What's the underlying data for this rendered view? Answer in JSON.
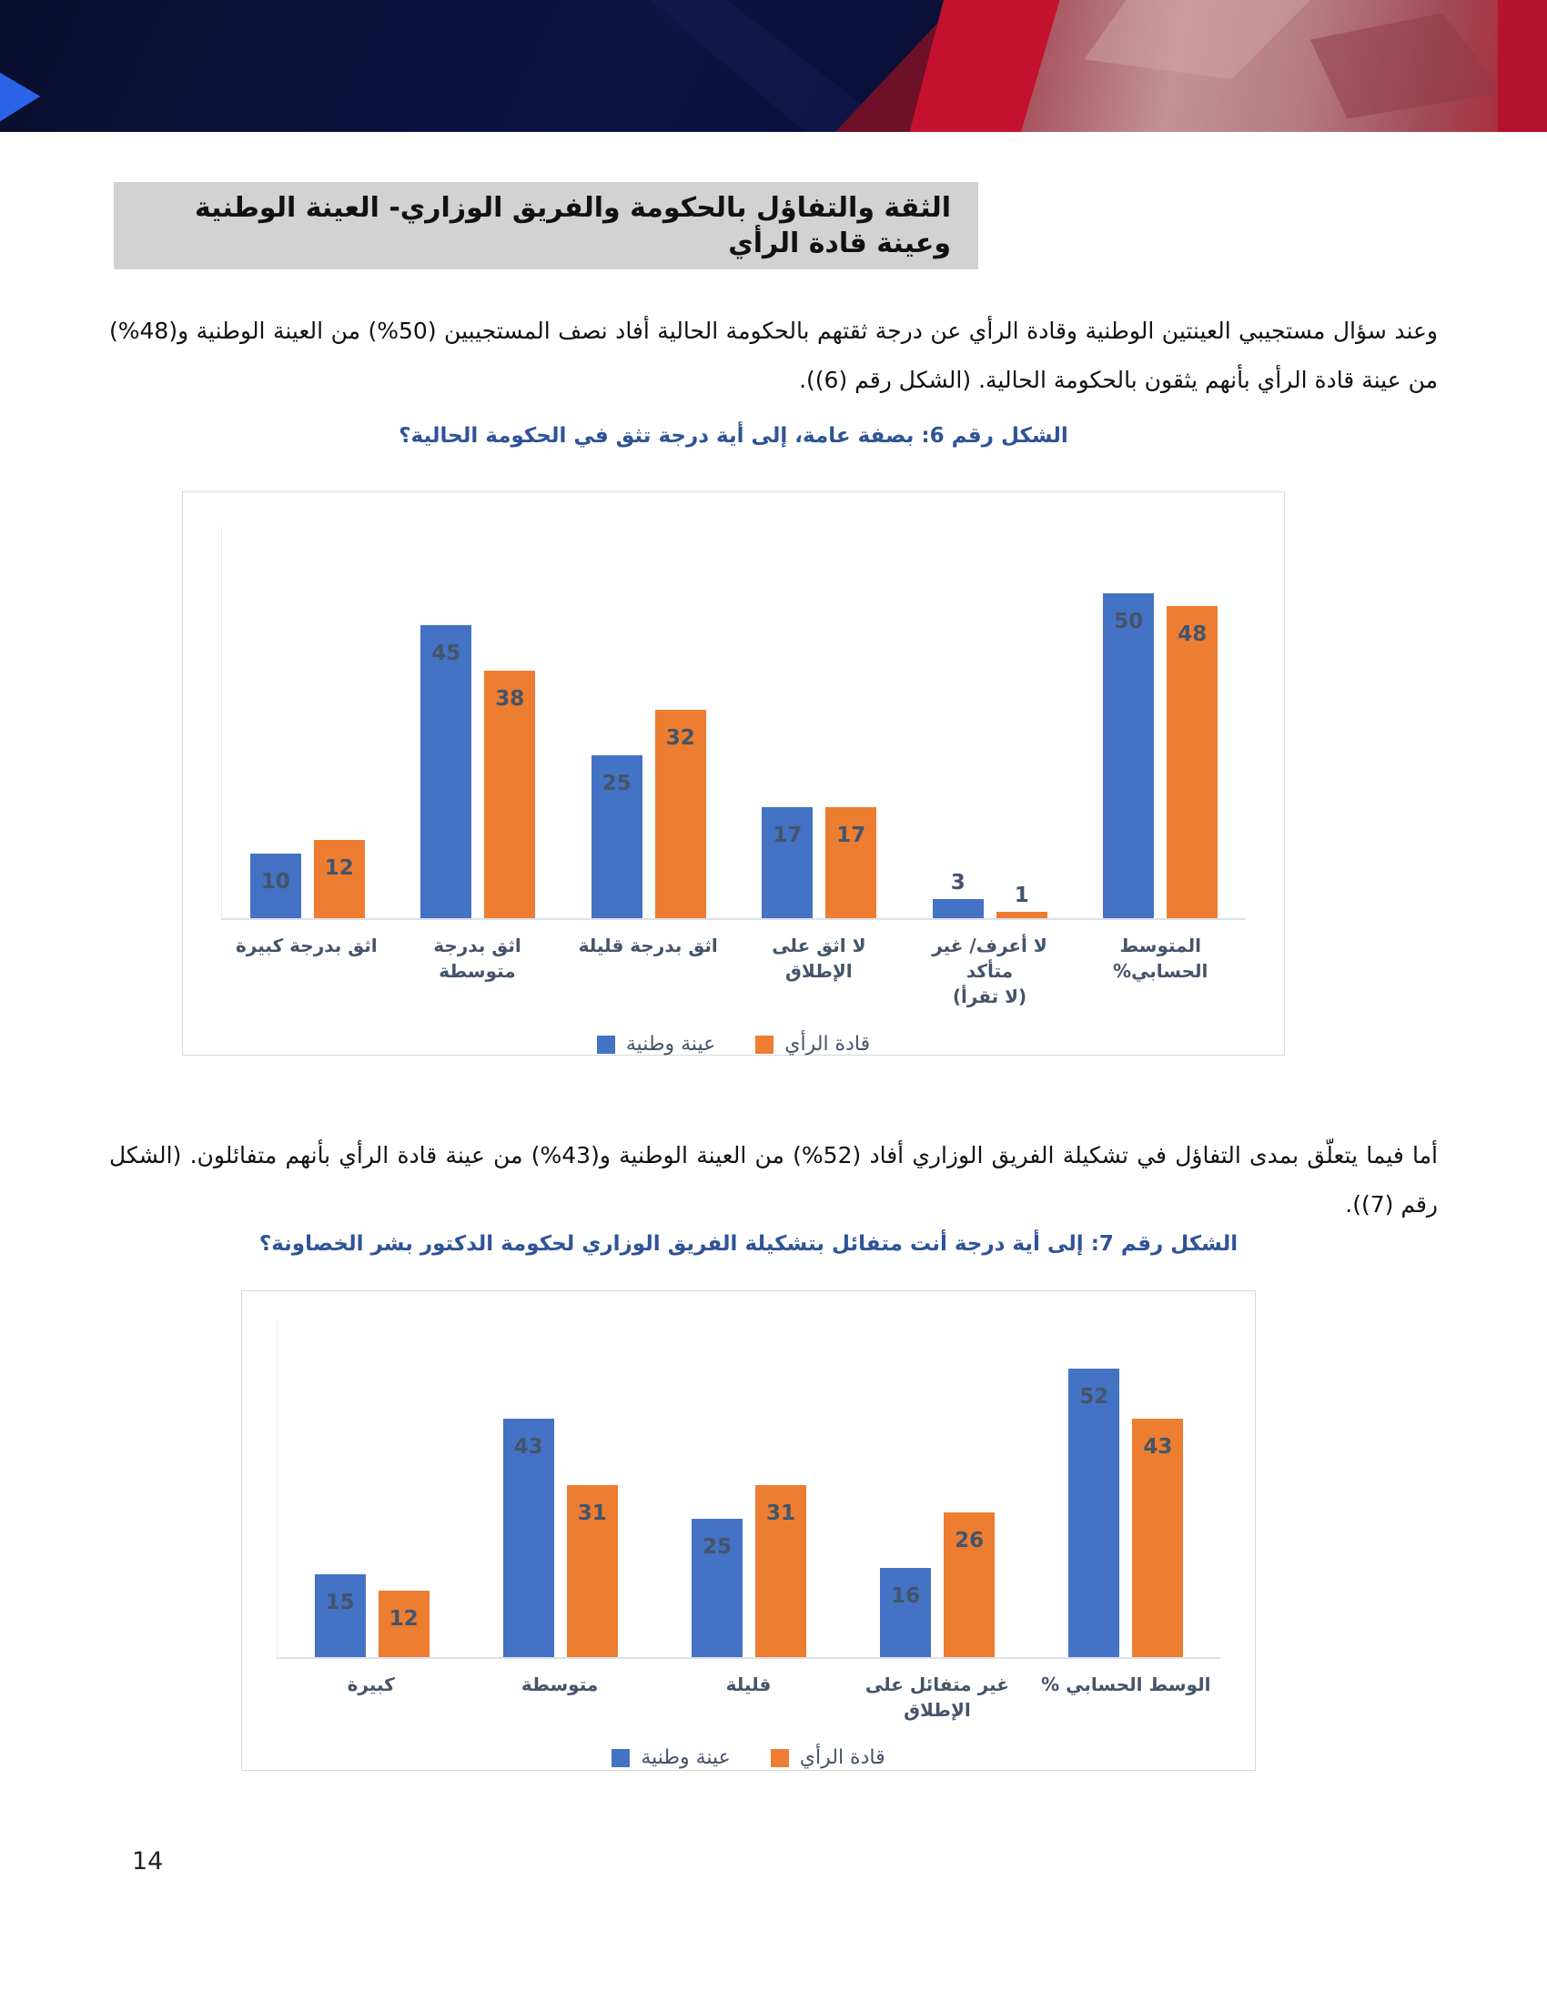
{
  "header": {
    "title": "الثقة والتفاؤل بالحكومة والفريق الوزاري- العينة الوطنية وعينة قادة الرأي"
  },
  "paragraphs": {
    "p1": "وعند سؤال مستجيبي العينتين الوطنية وقادة الرأي عن درجة ثقتهم بالحكومة الحالية أفاد نصف المستجيبين (50%) من العينة الوطنية و(48%) من عينة قادة الرأي بأنهم يثقون بالحكومة الحالية. (الشكل رقم (6)).",
    "p2": "أما فيما يتعلّق بمدى التفاؤل في تشكيلة الفريق الوزاري أفاد (52%) من العينة الوطنية و(43%) من عينة قادة الرأي بأنهم متفائلون. (الشكل رقم (7))."
  },
  "page_number": "14",
  "colors": {
    "series_national_blue": "#4472C4",
    "series_leaders_orange": "#ED7D31",
    "caption_blue": "#2F5496",
    "title_bar_gray": "#D2D2D2",
    "banner_navy": "#0C1238",
    "banner_red": "#C4122E"
  },
  "chart_data": [
    {
      "type": "bar",
      "title": "الشكل رقم 6: بصفة عامة، إلى أية درجة تثق في الحكومة الحالية؟",
      "categories": [
        "اثق بدرجة كبيرة",
        "اثق بدرجة متوسطة",
        "اثق بدرجة قليلة",
        "لا اثق على الإطلاق",
        "لا أعرف/ غير متأكد\n(لا تقرأ)",
        "المتوسط الحسابي%"
      ],
      "series": [
        {
          "name": "عينة وطنية",
          "color": "#4472C4",
          "values": [
            10,
            45,
            25,
            17,
            3,
            50
          ]
        },
        {
          "name": "قادة الرأي",
          "color": "#ED7D31",
          "values": [
            12,
            38,
            32,
            17,
            1,
            48
          ]
        }
      ],
      "ylim": [
        0,
        55
      ],
      "grid": false,
      "legend_position": "bottom",
      "value_labels": true
    },
    {
      "type": "bar",
      "title": "الشكل رقم 7: إلى أية درجة أنت متفائل بتشكيلة الفريق الوزاري لحكومة الدكتور بشر الخصاونة؟",
      "categories": [
        "كبيرة",
        "متوسطة",
        "قليلة",
        "غير متفائل على الإطلاق",
        "الوسط الحسابي %"
      ],
      "series": [
        {
          "name": "عينة وطنية",
          "color": "#4472C4",
          "values": [
            15,
            43,
            25,
            16,
            52
          ]
        },
        {
          "name": "قادة الرأي",
          "color": "#ED7D31",
          "values": [
            12,
            31,
            31,
            26,
            43
          ]
        }
      ],
      "ylim": [
        0,
        57
      ],
      "grid": false,
      "legend_position": "bottom",
      "value_labels": true
    }
  ]
}
